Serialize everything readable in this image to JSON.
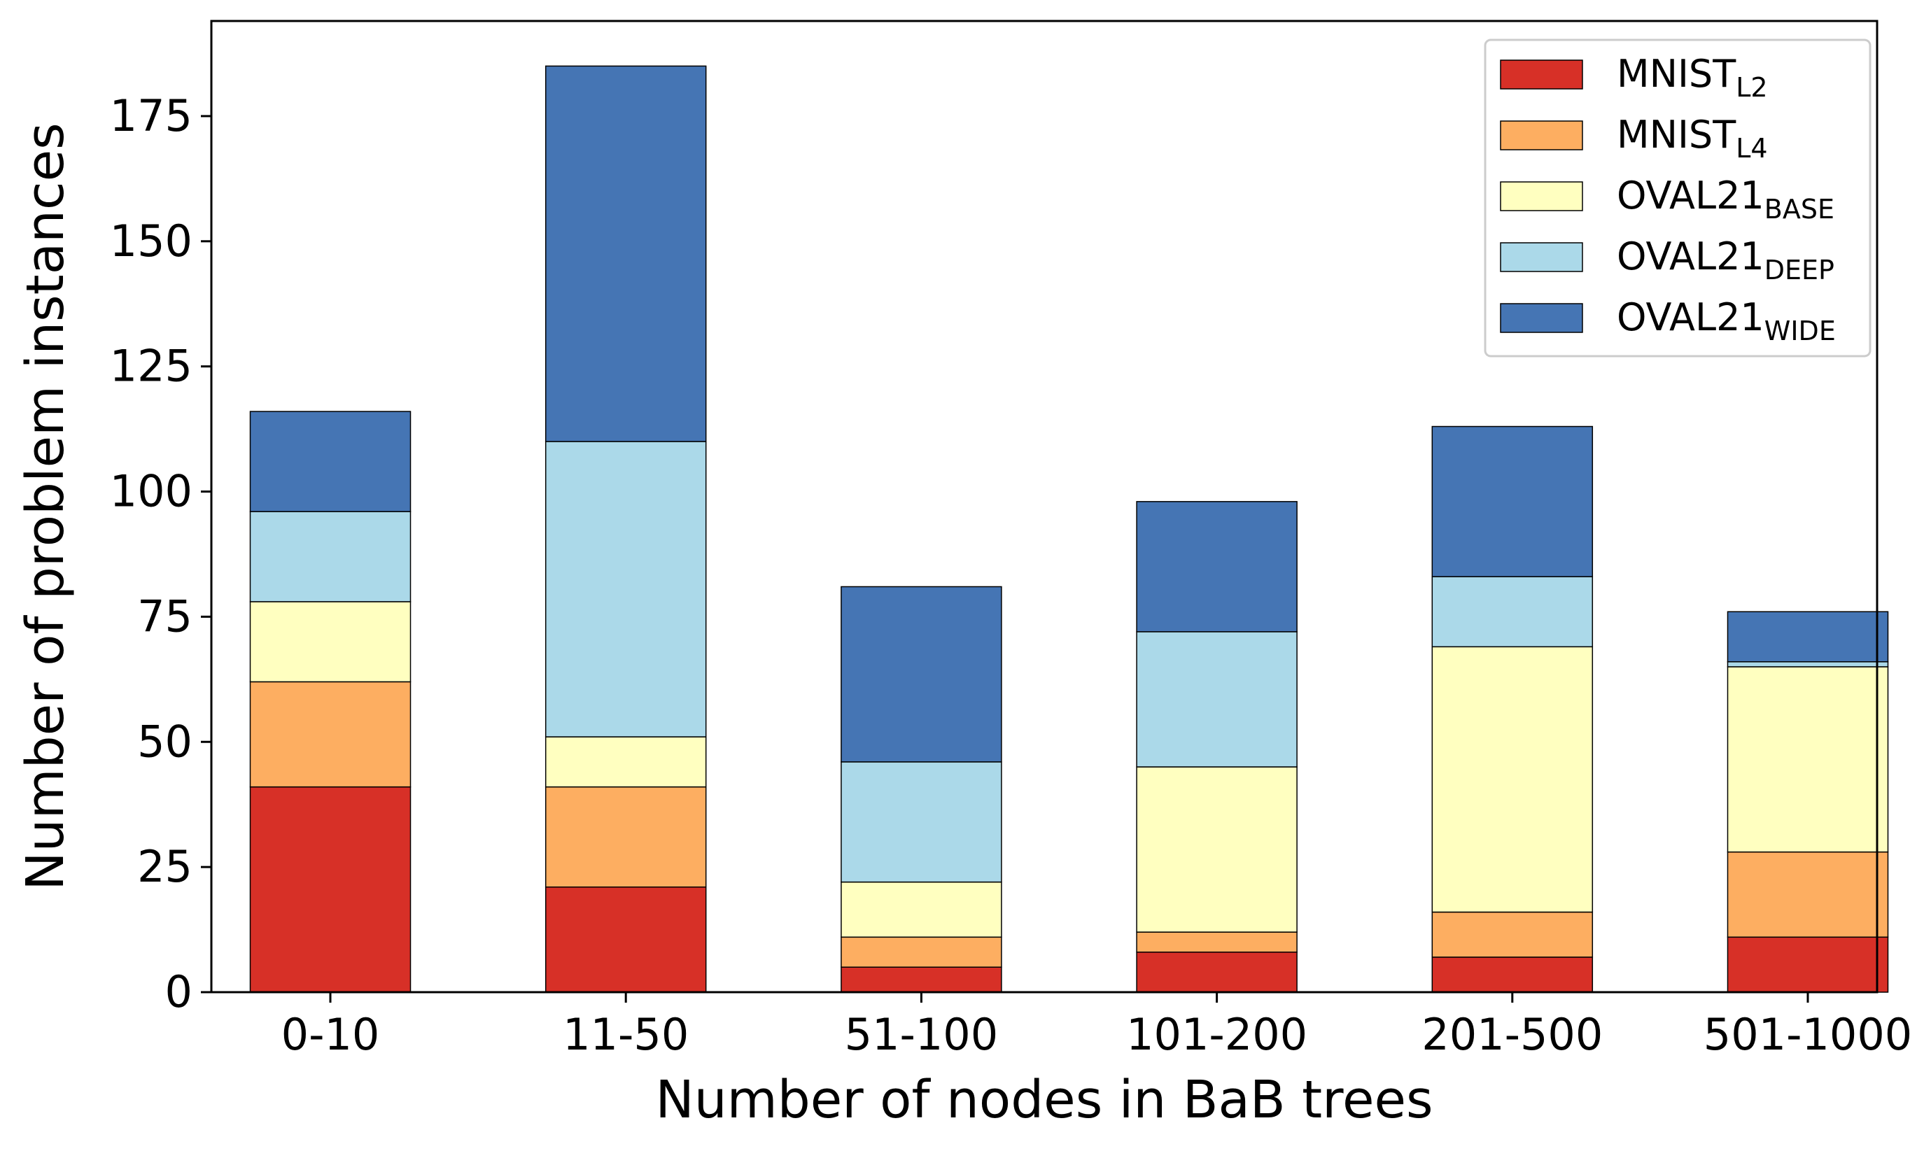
{
  "chart_data": {
    "type": "bar",
    "stacked": true,
    "title": "",
    "xlabel": "Number of nodes in BaB trees",
    "ylabel": "Number of problem instances",
    "categories": [
      "0-10",
      "11-50",
      "51-100",
      "101-200",
      "201-500",
      "501-1000"
    ],
    "ylim": [
      0,
      194
    ],
    "yticks": [
      0,
      25,
      50,
      75,
      100,
      125,
      150,
      175
    ],
    "grid": false,
    "legend_position": "top-right",
    "series": [
      {
        "name": "MNIST",
        "subscript": "L2",
        "color": "#d73027",
        "values": [
          41,
          21,
          5,
          8,
          7,
          11
        ]
      },
      {
        "name": "MNIST",
        "subscript": "L4",
        "color": "#fdae61",
        "values": [
          21,
          20,
          6,
          4,
          9,
          17
        ]
      },
      {
        "name": "OVAL21",
        "subscript": "BASE",
        "color": "#ffffc0",
        "values": [
          16,
          10,
          11,
          33,
          53,
          37
        ]
      },
      {
        "name": "OVAL21",
        "subscript": "DEEP",
        "color": "#abd9e9",
        "values": [
          18,
          59,
          24,
          27,
          14,
          1
        ]
      },
      {
        "name": "OVAL21",
        "subscript": "WIDE",
        "color": "#4575b4",
        "values": [
          20,
          75,
          35,
          26,
          30,
          10
        ]
      }
    ]
  }
}
